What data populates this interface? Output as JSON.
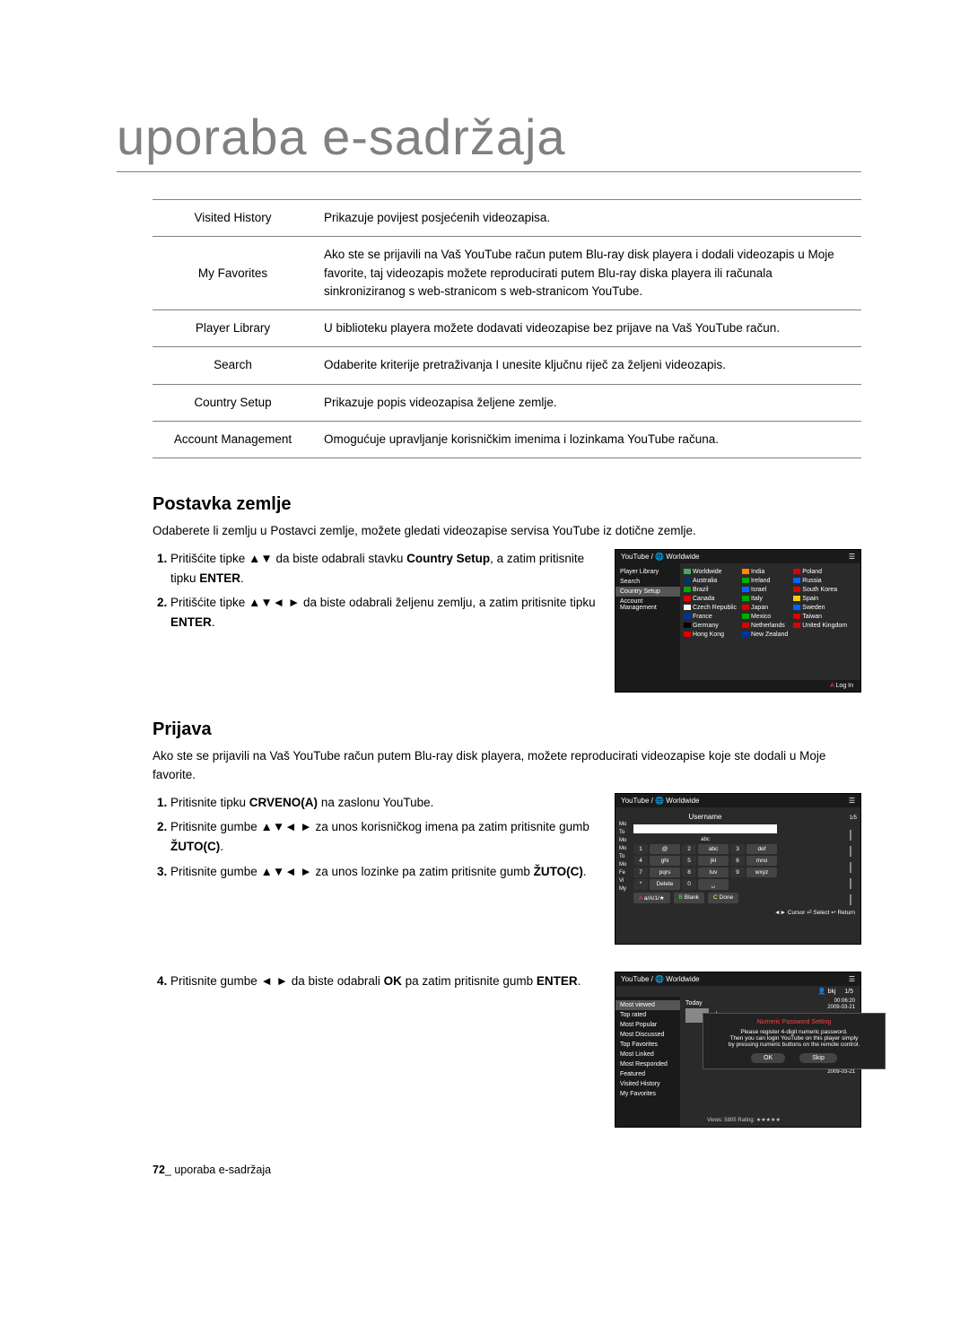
{
  "title": "uporaba e-sadržaja",
  "table_rows": [
    {
      "label": "Visited History",
      "desc": "Prikazuje povijest posjećenih videozapisa."
    },
    {
      "label": "My Favorites",
      "desc": "Ako ste se prijavili na Vaš YouTube račun putem Blu-ray disk playera i dodali videozapis u Moje favorite, taj videozapis možete reproducirati putem Blu-ray diska playera ili računala sinkroniziranog s web-stranicom s web-stranicom YouTube."
    },
    {
      "label": "Player Library",
      "desc": "U biblioteku playera možete dodavati videozapise bez prijave na Vaš YouTube račun."
    },
    {
      "label": "Search",
      "desc": "Odaberite kriterije pretraživanja I unesite ključnu riječ za željeni videozapis."
    },
    {
      "label": "Country Setup",
      "desc": "Prikazuje popis videozapisa željene zemlje."
    },
    {
      "label": "Account Management",
      "desc": "Omogućuje upravljanje korisničkim imenima i lozinkama YouTube računa."
    }
  ],
  "postavka": {
    "title": "Postavka zemlje",
    "intro": "Odaberete li zemlju u Postavci zemlje, možete gledati videozapise servisa YouTube iz dotične zemlje.",
    "step1_pre": "Pritišćite tipke ▲▼ da biste odabrali stavku ",
    "step1_b1": "Country Setup",
    "step1_mid": ", a zatim pritisnite tipku ",
    "step1_b2": "ENTER",
    "step2_pre": "Pritišćite tipke ▲▼◄ ► da biste odabrali željenu zemlju, a zatim pritisnite tipku ",
    "step2_b": "ENTER"
  },
  "prijava": {
    "title": "Prijava",
    "intro": "Ako ste se prijavili na Vaš YouTube račun putem Blu-ray disk playera, možete reproducirati videozapise koje ste dodali u Moje favorite.",
    "step1_pre": "Pritisnite tipku ",
    "step1_b": "CRVENO(A)",
    "step1_post": " na zaslonu YouTube.",
    "step2_pre": "Pritisnite gumbe ▲▼◄ ► za unos korisničkog imena pa zatim pritisnite gumb ",
    "step2_b": "ŽUTO(C)",
    "step3_pre": "Pritisnite gumbe ▲▼◄ ► za unos lozinke pa zatim pritisnite gumb ",
    "step3_b": "ŽUTO(C)",
    "step4_pre": "Pritisnite gumbe ◄ ► da biste odabrali ",
    "step4_b1": "OK",
    "step4_mid": " pa zatim pritisnite gumb ",
    "step4_b2": "ENTER"
  },
  "ss1": {
    "header_left": "YouTube / ",
    "header_country": "Worldwide",
    "sidebar": [
      "Player Library",
      "Search",
      "Country Setup",
      "Account Management"
    ],
    "countries_col1": [
      "Worldwide",
      "Australia",
      "Brazil",
      "Canada",
      "Czech Republic",
      "France",
      "Germany",
      "Hong Kong"
    ],
    "countries_col2": [
      "India",
      "Ireland",
      "Israel",
      "Italy",
      "Japan",
      "Mexico",
      "Netherlands",
      "New Zealand"
    ],
    "countries_col3": [
      "Poland",
      "Russia",
      "South Korea",
      "Spain",
      "Sweden",
      "Taiwan",
      "United Kingdom"
    ],
    "flag_colors_col1": [
      "#4a6",
      "#036",
      "#0a0",
      "#d00",
      "#fff",
      "#039",
      "#000",
      "#d00"
    ],
    "flag_colors_col2": [
      "#f80",
      "#0a0",
      "#06f",
      "#0a0",
      "#d00",
      "#0a0",
      "#d00",
      "#039"
    ],
    "flag_colors_col3": [
      "#d00",
      "#06f",
      "#d00",
      "#fc0",
      "#06f",
      "#d00",
      "#d00"
    ],
    "footer": "Log In",
    "footer_prefix": "A"
  },
  "ss2": {
    "header_left": "YouTube / ",
    "header_country": "Worldwide",
    "title": "Username",
    "side_labels": [
      "Mo",
      "To",
      "Mo",
      "Mo",
      "To",
      "Mo",
      "Fe",
      "Vi",
      "My"
    ],
    "page": "1/5",
    "keypad": [
      [
        "1",
        "@",
        "2",
        "abc",
        "3",
        "def"
      ],
      [
        "4",
        "ghi",
        "5",
        "jkl",
        "6",
        "mno"
      ],
      [
        "7",
        "pqrs",
        "8",
        "tuv",
        "9",
        "wxyz"
      ],
      [
        "*",
        "Delete",
        "0",
        "␣",
        "",
        ""
      ]
    ],
    "bottom_left": "a/A/1/★",
    "bottom_mid": "Blank",
    "bottom_right": "Done",
    "bottom_colors": {
      "left": "A",
      "mid": "B",
      "right": "C"
    },
    "footer": "◄► Cursor   ⏎ Select   ↩ Return"
  },
  "ss3": {
    "header_left": "YouTube / ",
    "header_country": "Worldwide",
    "sidebar": [
      "Most viewed",
      "Top rated",
      "Most Popular",
      "Most Discussed",
      "Top Favorites",
      "Most Linked",
      "Most Responded",
      "Featured",
      "Visited History",
      "My Favorites"
    ],
    "user": "bkj",
    "page": "1/5",
    "today": "Today",
    "item_title": "abc",
    "item_meta": "Views: 5805     Rating: ★★★★★",
    "times": [
      "00:06:20",
      "2009-03-21",
      "00:06:20",
      "2009-03-21",
      "00:06:20",
      "2009-03-21",
      "00:06:20",
      "2009-03-21"
    ],
    "dialog_title": "Numeric Password Setting",
    "dialog_line1": "Please register 4-digit numeric password.",
    "dialog_line2": "Then you can login YouTube on this player simply",
    "dialog_line3": "by pressing numeric buttons on the remote control.",
    "dialog_ok": "OK",
    "dialog_skip": "Skip"
  },
  "footer_page": "72",
  "footer_text": "uporaba e-sadržaja"
}
